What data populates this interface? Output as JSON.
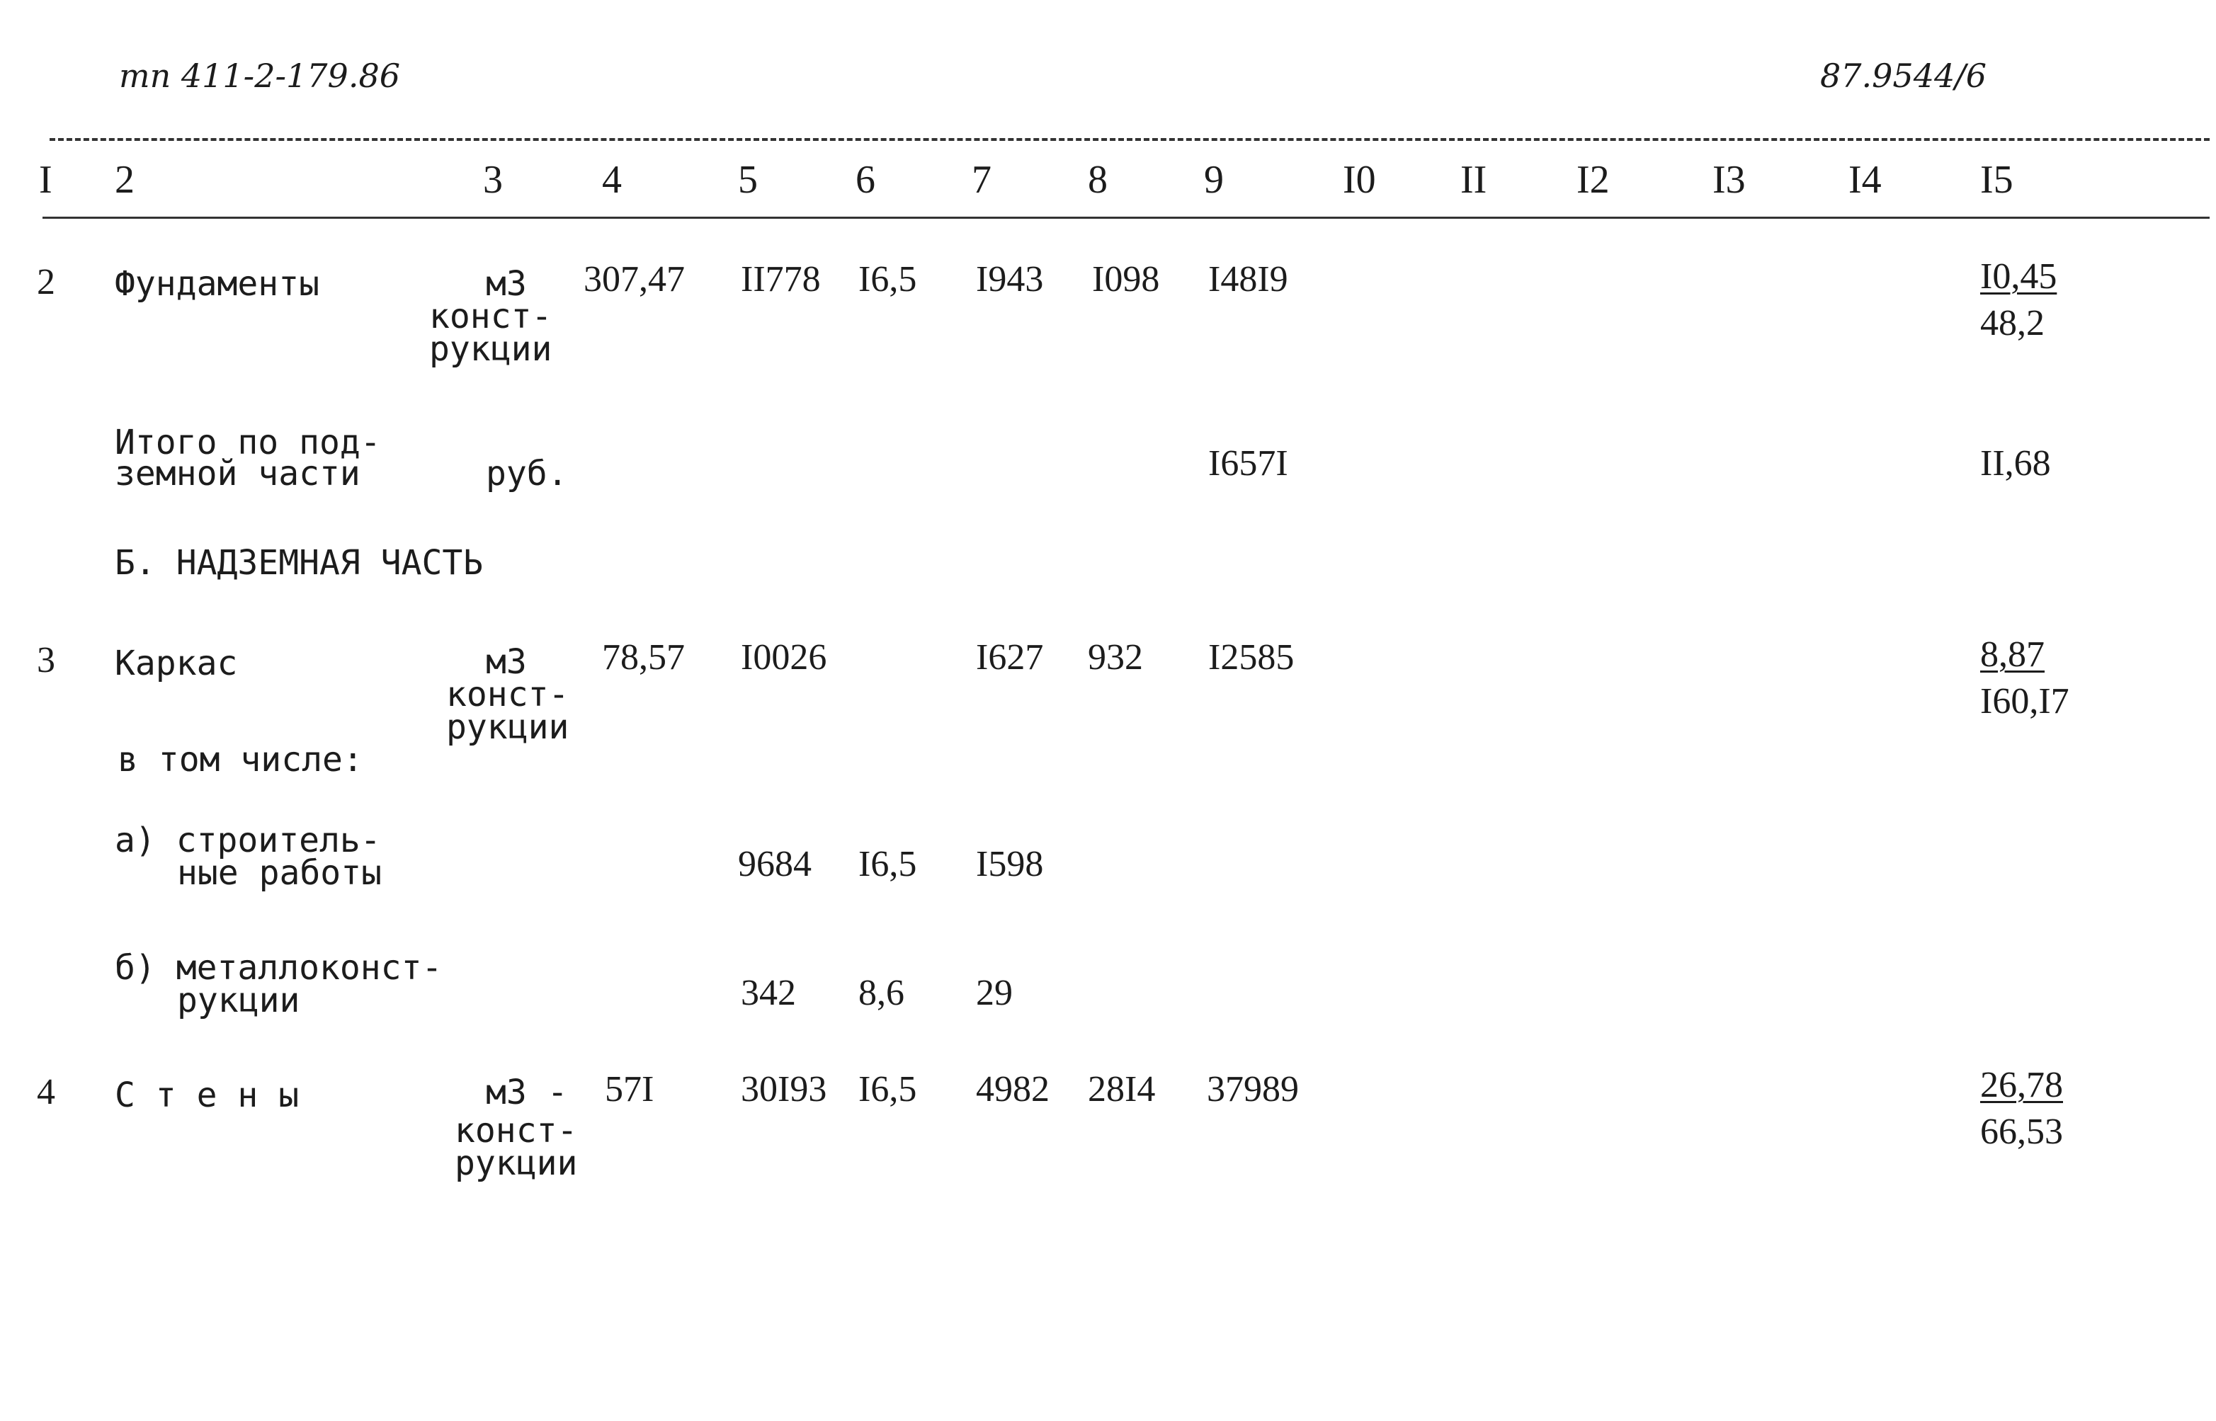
{
  "doc_code": "тп 411-2-179.86",
  "sheet_code": "87.9544/6",
  "columns": [
    "I",
    "2",
    "3",
    "4",
    "5",
    "6",
    "7",
    "8",
    "9",
    "I0",
    "II",
    "I2",
    "I3",
    "I4",
    "I5"
  ],
  "row_foundations": {
    "num": "2",
    "name": "Фундаменты",
    "unit_lines": [
      "м3",
      "конст-",
      "рукции"
    ],
    "c4": "307,47",
    "c5": "II778",
    "c6": "I6,5",
    "c7": "I943",
    "c8": "I098",
    "c9": "I48I9",
    "c15_top": "I0,45",
    "c15_bottom": "48,2"
  },
  "row_subtotal": {
    "name_lines": [
      "Итого по под-",
      "земной части"
    ],
    "unit": "руб.",
    "c9": "I657I",
    "c15": "II,68"
  },
  "section_b": "Б. НАДЗЕМНАЯ ЧАСТЬ",
  "row_frame": {
    "num": "3",
    "name": "Каркас",
    "unit_lines": [
      "м3",
      "конст-",
      "рукции"
    ],
    "c4": "78,57",
    "c5": "I0026",
    "c7": "I627",
    "c8": "932",
    "c9": "I2585",
    "c15_top": "8,87",
    "c15_bottom": "I60,I7",
    "including": "в том числе:"
  },
  "row_a": {
    "name_lines": [
      "а) строитель-",
      "ные работы"
    ],
    "c5": "9684",
    "c6": "I6,5",
    "c7": "I598"
  },
  "row_b": {
    "name_lines": [
      "б) металлоконст-",
      "рукции"
    ],
    "c5": "342",
    "c6": "8,6",
    "c7": "29"
  },
  "row_walls": {
    "num": "4",
    "name": "С т е н ы",
    "unit_lines": [
      "м3 -",
      "конст-",
      "рукции"
    ],
    "c4": "57I",
    "c5": "30I93",
    "c6": "I6,5",
    "c7": "4982",
    "c8": "28I4",
    "c9": "37989",
    "c15_top": "26,78",
    "c15_bottom": "66,53"
  }
}
